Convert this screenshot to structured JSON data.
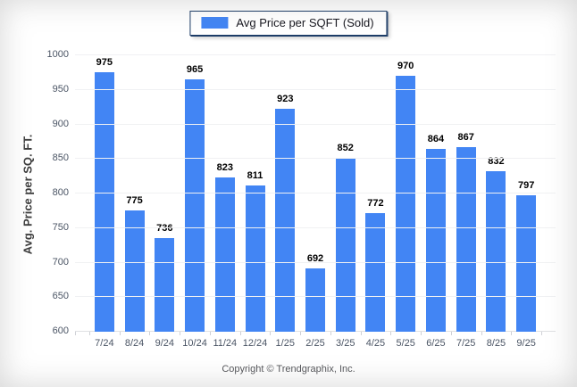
{
  "legend": {
    "label": "Avg Price per SQFT (Sold)"
  },
  "footer": {
    "copyright": "Copyright © Trendgraphix, Inc."
  },
  "colors": {
    "bar": "#4285f4",
    "legend_border": "#1c3c67",
    "gridline": "#f0f1f3",
    "axis_text": "#4b5565",
    "value_text": "#000000"
  },
  "chart_data": {
    "type": "bar",
    "title": "",
    "categories": [
      "7/24",
      "8/24",
      "9/24",
      "10/24",
      "11/24",
      "12/24",
      "1/25",
      "2/25",
      "3/25",
      "4/25",
      "5/25",
      "6/25",
      "7/25",
      "8/25",
      "9/25"
    ],
    "values": [
      975,
      775,
      736,
      965,
      823,
      811,
      923,
      692,
      852,
      772,
      970,
      864,
      867,
      832,
      797
    ],
    "series_name": "Avg Price per SQFT (Sold)",
    "xlabel": "",
    "ylabel": "Avg. Price per SQ. FT.",
    "ylim": [
      600,
      1000
    ],
    "ytick_step": 50,
    "yticks": [
      600,
      650,
      700,
      750,
      800,
      850,
      900,
      950,
      1000
    ],
    "grid": "horizontal",
    "legend_position": "top-center",
    "value_labels": "above-bars",
    "bar_color": "#4285f4"
  }
}
